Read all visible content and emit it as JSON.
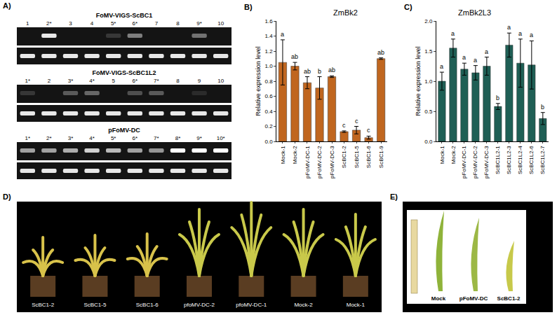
{
  "panel_A": {
    "letter": "A)",
    "gels": [
      {
        "title": "FoMV-VIGS-ScBC1",
        "lanes": [
          "1",
          "2*",
          "3",
          "4",
          "5*",
          "6*",
          "7",
          "8",
          "9*",
          "10"
        ],
        "band_intensity": [
          0,
          0.9,
          0,
          0,
          0.15,
          0.45,
          0,
          0,
          0.4,
          0
        ]
      },
      {
        "title": "FoMV-VIGS-ScBC1L2",
        "lanes": [
          "1*",
          "2",
          "3*",
          "4*",
          "5",
          "6*",
          "7*",
          "8",
          "9",
          "10"
        ],
        "band_intensity": [
          0.15,
          0,
          0.3,
          0.35,
          0,
          0.25,
          0.3,
          0,
          0.1,
          0
        ]
      },
      {
        "title": "pFoMV-DC",
        "lanes": [
          "1*",
          "2*",
          "3*",
          "4*",
          "5*",
          "6*",
          "7*",
          "8*",
          "9*",
          "10*"
        ],
        "band_intensity": [
          0.6,
          0.6,
          0.65,
          0.8,
          0.7,
          0.6,
          0.55,
          1,
          1,
          1
        ]
      }
    ]
  },
  "chart_data": [
    {
      "letter": "B)",
      "type": "bar",
      "title": "ZmBk2",
      "y_label": "Relative expression level",
      "categories": [
        "Mock-1",
        "Mock-2",
        "pFoMV-DC-1",
        "pFoMV-DC-2",
        "pFoMV-DC-3",
        "ScBC1-2",
        "ScBC1-5",
        "ScBC1-6",
        "ScBC1-9"
      ],
      "values": [
        1.05,
        1.0,
        0.78,
        0.71,
        0.86,
        0.13,
        0.15,
        0.05,
        1.1
      ],
      "errors": [
        0.3,
        0.05,
        0.08,
        0.15,
        0.01,
        0.01,
        0.05,
        0.02,
        0.01
      ],
      "letters": [
        "a",
        "ab",
        "ab",
        "b",
        "ab",
        "c",
        "c",
        "c",
        "ab"
      ],
      "color": "#c0661f",
      "ylim": [
        0,
        1.6
      ],
      "yticks": [
        {
          "value": 0,
          "label": "0.0"
        },
        0.2,
        0.4,
        0.6,
        0.8,
        {
          "value": 1,
          "label": "1.0"
        },
        1.2,
        1.4,
        1.6
      ],
      "grid": false
    },
    {
      "letter": "C)",
      "type": "bar",
      "title": "ZmBk2L3",
      "y_label": "Relative expression level",
      "categories": [
        "Mock-1",
        "Mock-2",
        "pFoMV-DC-1",
        "pFoMV-DC-2",
        "pFoMV-DC-3",
        "ScBC1L2-1",
        "ScBC1L2-3",
        "ScBC1L2-4",
        "ScBC1L2-6",
        "ScBC1L2-7"
      ],
      "values": [
        1.0,
        1.55,
        1.2,
        1.14,
        1.25,
        0.58,
        1.6,
        1.3,
        1.27,
        0.38
      ],
      "errors": [
        0.15,
        0.15,
        0.1,
        0.12,
        0.15,
        0.05,
        0.2,
        0.4,
        0.4,
        0.1
      ],
      "letters": [
        "a",
        "a",
        "a",
        "a",
        "a",
        "b",
        "a",
        "a",
        "a",
        "b"
      ],
      "color": "#1f5f55",
      "ylim": [
        0,
        2
      ],
      "yticks": [
        {
          "value": 0,
          "label": "0.0"
        },
        0.5,
        {
          "value": 1,
          "label": "1.0"
        },
        1.5,
        {
          "value": 2,
          "label": "2.0"
        }
      ],
      "grid": false
    }
  ],
  "panel_D": {
    "letter": "D)",
    "plants": [
      "ScBC1-2",
      "ScBC1-5",
      "ScBC1-6",
      "pfoMV-DC-2",
      "pfoMV-DC-1",
      "Mock-2",
      "Mock-1"
    ]
  },
  "panel_E": {
    "letter": "E)",
    "leaves": [
      "Mock",
      "pFoMV-DC",
      "ScBC1-2"
    ]
  }
}
